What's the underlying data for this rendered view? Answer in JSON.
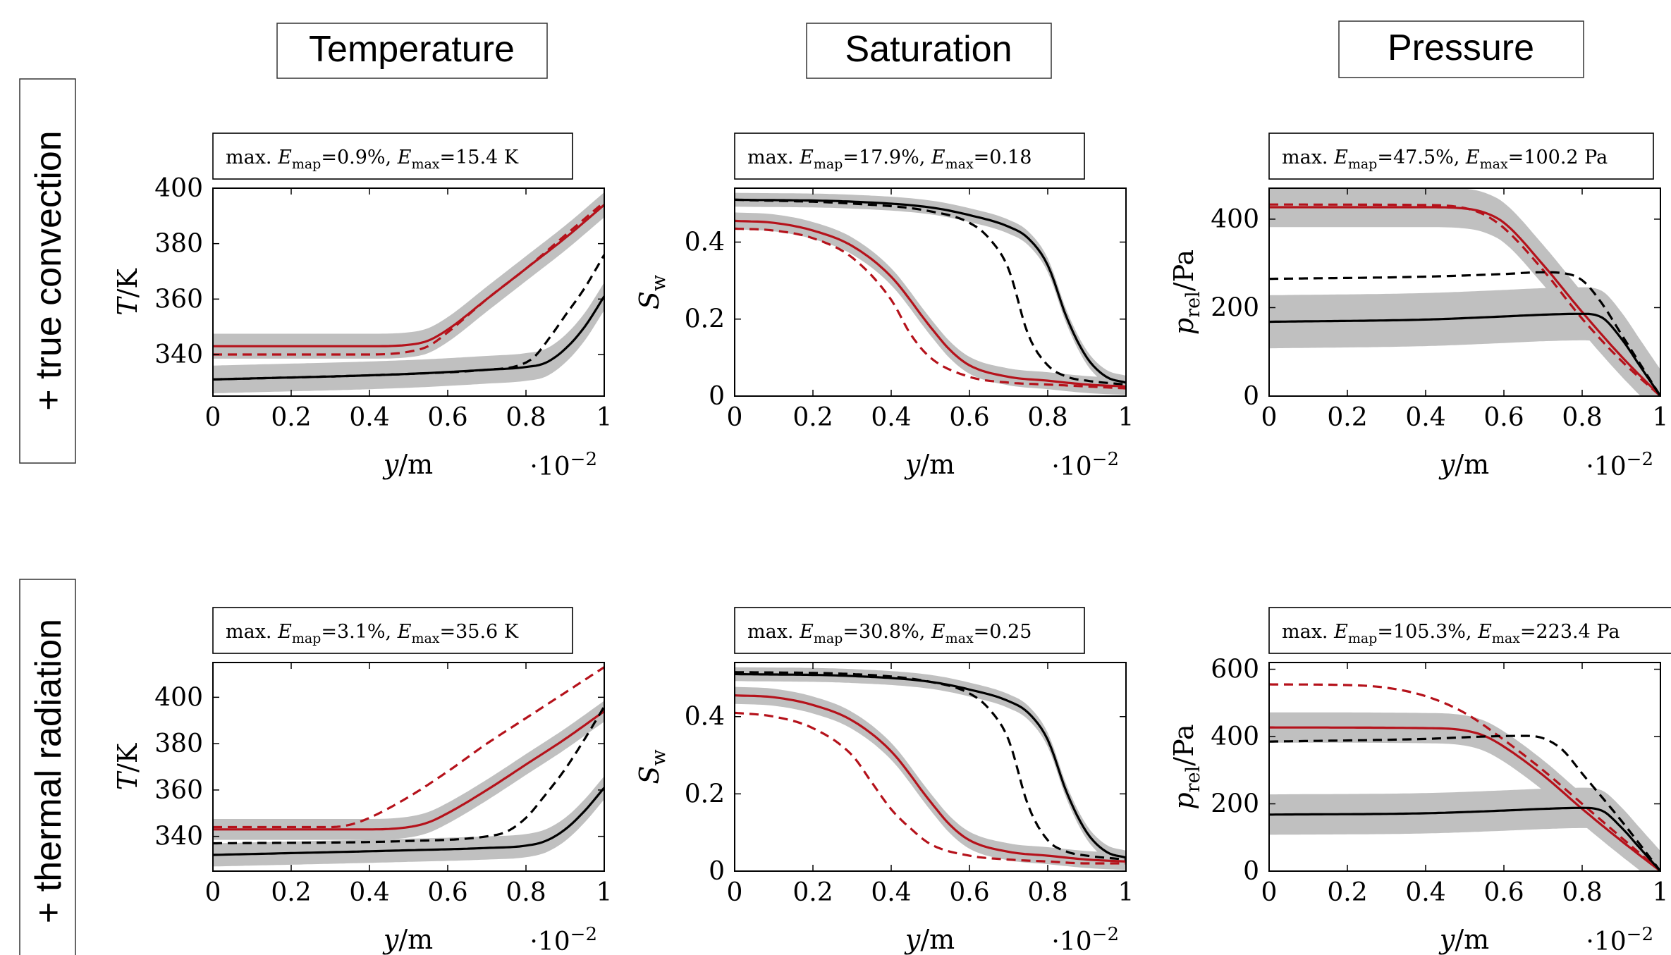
{
  "columns": [
    "Temperature",
    "Saturation",
    "Pressure"
  ],
  "rows": [
    "+ true convection",
    "+ thermal radiation"
  ],
  "colors": {
    "red": "#b5121b",
    "black": "#000000",
    "band": "#c0c0c0"
  },
  "chart_data": [
    {
      "type": "line",
      "row": 0,
      "col": 0,
      "annotation": "max. E_map=0.9%, E_max=15.4 K",
      "xlabel": "y/m",
      "ylabel": "T/K",
      "x_multiplier": "·10^−2",
      "xlim": [
        0,
        1
      ],
      "ylim": [
        325,
        400
      ],
      "xticks": [
        0,
        0.2,
        0.4,
        0.6,
        0.8,
        1
      ],
      "yticks": [
        340,
        360,
        380,
        400
      ],
      "series": [
        {
          "color": "red",
          "style": "solid",
          "band": 4.5,
          "x": [
            0,
            0.4,
            0.5,
            0.55,
            0.6,
            0.7,
            0.8,
            0.9,
            1
          ],
          "y": [
            343,
            343,
            343.5,
            345,
            349,
            360,
            371,
            382,
            394
          ]
        },
        {
          "color": "red",
          "style": "dashed",
          "x": [
            0,
            0.4,
            0.5,
            0.55,
            0.6,
            0.7,
            0.8,
            0.9,
            1
          ],
          "y": [
            340,
            340,
            341,
            343,
            348,
            360,
            371,
            383,
            395
          ]
        },
        {
          "color": "black",
          "style": "solid",
          "band": 5,
          "x": [
            0,
            0.5,
            0.7,
            0.8,
            0.85,
            0.9,
            0.95,
            1
          ],
          "y": [
            331,
            333,
            334.5,
            335.5,
            337,
            342,
            350,
            361
          ]
        },
        {
          "color": "black",
          "style": "dashed",
          "x": [
            0,
            0.5,
            0.7,
            0.78,
            0.82,
            0.86,
            0.9,
            0.95,
            1
          ],
          "y": [
            331,
            333,
            334.5,
            336,
            339,
            346,
            354,
            364,
            376
          ]
        }
      ]
    },
    {
      "type": "line",
      "row": 0,
      "col": 1,
      "annotation": "max. E_map=17.9%, E_max=0.18",
      "xlabel": "y/m",
      "ylabel": "S_w",
      "x_multiplier": "·10^−2",
      "xlim": [
        0,
        1
      ],
      "ylim": [
        0,
        0.54
      ],
      "xticks": [
        0,
        0.2,
        0.4,
        0.6,
        0.8,
        1
      ],
      "yticks": [
        0,
        0.2,
        0.4
      ],
      "series": [
        {
          "color": "black",
          "style": "solid",
          "band": 0.018,
          "x": [
            0,
            0.3,
            0.5,
            0.6,
            0.7,
            0.75,
            0.8,
            0.85,
            0.9,
            0.95,
            1
          ],
          "y": [
            0.51,
            0.505,
            0.49,
            0.47,
            0.44,
            0.41,
            0.34,
            0.2,
            0.1,
            0.05,
            0.035
          ]
        },
        {
          "color": "black",
          "style": "dashed",
          "x": [
            0,
            0.3,
            0.5,
            0.6,
            0.65,
            0.7,
            0.75,
            0.8,
            0.85,
            0.9,
            1
          ],
          "y": [
            0.51,
            0.5,
            0.48,
            0.45,
            0.41,
            0.33,
            0.16,
            0.08,
            0.05,
            0.04,
            0.03
          ]
        },
        {
          "color": "red",
          "style": "solid",
          "band": 0.022,
          "x": [
            0,
            0.1,
            0.2,
            0.3,
            0.4,
            0.5,
            0.55,
            0.6,
            0.7,
            0.8,
            0.9,
            1
          ],
          "y": [
            0.455,
            0.45,
            0.43,
            0.39,
            0.31,
            0.18,
            0.12,
            0.08,
            0.05,
            0.04,
            0.03,
            0.025
          ]
        },
        {
          "color": "red",
          "style": "dashed",
          "x": [
            0,
            0.1,
            0.2,
            0.3,
            0.4,
            0.45,
            0.5,
            0.6,
            0.7,
            0.8,
            0.9,
            1
          ],
          "y": [
            0.435,
            0.43,
            0.41,
            0.36,
            0.25,
            0.16,
            0.1,
            0.05,
            0.035,
            0.03,
            0.025,
            0.02
          ]
        }
      ]
    },
    {
      "type": "line",
      "row": 0,
      "col": 2,
      "annotation": "max. E_map=47.5%, E_max=100.2 Pa",
      "xlabel": "y/m",
      "ylabel": "p_rel/Pa",
      "x_multiplier": "·10^−2",
      "xlim": [
        0,
        1
      ],
      "ylim": [
        0,
        470
      ],
      "xticks": [
        0,
        0.2,
        0.4,
        0.6,
        0.8,
        1
      ],
      "yticks": [
        0,
        200,
        400
      ],
      "series": [
        {
          "color": "red",
          "style": "solid",
          "band": 45,
          "x": [
            0,
            0.4,
            0.5,
            0.55,
            0.6,
            0.7,
            0.8,
            0.9,
            1
          ],
          "y": [
            427,
            427,
            424,
            415,
            392,
            297,
            190,
            90,
            0
          ]
        },
        {
          "color": "red",
          "style": "dashed",
          "x": [
            0,
            0.4,
            0.5,
            0.55,
            0.6,
            0.7,
            0.8,
            0.9,
            1
          ],
          "y": [
            433,
            432,
            425,
            410,
            380,
            285,
            175,
            80,
            0
          ]
        },
        {
          "color": "black",
          "style": "solid",
          "band": 60,
          "x": [
            0,
            0.4,
            0.6,
            0.7,
            0.8,
            0.85,
            0.9,
            0.95,
            1
          ],
          "y": [
            168,
            173,
            180,
            184,
            186,
            178,
            130,
            65,
            0
          ]
        },
        {
          "color": "black",
          "style": "dashed",
          "x": [
            0,
            0.4,
            0.6,
            0.7,
            0.75,
            0.8,
            0.85,
            0.9,
            0.95,
            1
          ],
          "y": [
            265,
            270,
            276,
            280,
            278,
            262,
            210,
            140,
            70,
            0
          ]
        }
      ]
    },
    {
      "type": "line",
      "row": 1,
      "col": 0,
      "annotation": "max. E_map=3.1%, E_max=35.6 K",
      "xlabel": "y/m",
      "ylabel": "T/K",
      "x_multiplier": "·10^−2",
      "xlim": [
        0,
        1
      ],
      "ylim": [
        325,
        415
      ],
      "xticks": [
        0,
        0.2,
        0.4,
        0.6,
        0.8,
        1
      ],
      "yticks": [
        340,
        360,
        380,
        400
      ],
      "series": [
        {
          "color": "red",
          "style": "dashed",
          "x": [
            0,
            0.3,
            0.35,
            0.4,
            0.5,
            0.6,
            0.7,
            0.8,
            0.9,
            1
          ],
          "y": [
            344,
            344,
            345,
            348,
            357,
            368,
            380,
            391,
            402,
            413
          ]
        },
        {
          "color": "red",
          "style": "solid",
          "band": 4.5,
          "x": [
            0,
            0.4,
            0.5,
            0.55,
            0.6,
            0.7,
            0.8,
            0.9,
            1
          ],
          "y": [
            343,
            343,
            344,
            346,
            350,
            360,
            371,
            382,
            394
          ]
        },
        {
          "color": "black",
          "style": "dashed",
          "x": [
            0,
            0.5,
            0.7,
            0.75,
            0.8,
            0.85,
            0.9,
            0.95,
            1
          ],
          "y": [
            337,
            338,
            340,
            342,
            348,
            358,
            369,
            382,
            396
          ]
        },
        {
          "color": "black",
          "style": "solid",
          "band": 5,
          "x": [
            0,
            0.5,
            0.7,
            0.8,
            0.85,
            0.9,
            0.95,
            1
          ],
          "y": [
            332,
            334,
            335,
            336,
            338,
            343,
            351,
            361
          ]
        }
      ]
    },
    {
      "type": "line",
      "row": 1,
      "col": 1,
      "annotation": "max. E_map=30.8%, E_max=0.25",
      "xlabel": "y/m",
      "ylabel": "S_w",
      "x_multiplier": "·10^−2",
      "xlim": [
        0,
        1
      ],
      "ylim": [
        0,
        0.54
      ],
      "xticks": [
        0,
        0.2,
        0.4,
        0.6,
        0.8,
        1
      ],
      "yticks": [
        0,
        0.2,
        0.4
      ],
      "series": [
        {
          "color": "black",
          "style": "solid",
          "band": 0.018,
          "x": [
            0,
            0.3,
            0.5,
            0.6,
            0.7,
            0.75,
            0.8,
            0.85,
            0.9,
            0.95,
            1
          ],
          "y": [
            0.51,
            0.505,
            0.49,
            0.47,
            0.44,
            0.41,
            0.34,
            0.2,
            0.1,
            0.05,
            0.035
          ]
        },
        {
          "color": "black",
          "style": "dashed",
          "x": [
            0,
            0.3,
            0.5,
            0.6,
            0.65,
            0.7,
            0.75,
            0.8,
            0.85,
            0.9,
            1
          ],
          "y": [
            0.515,
            0.51,
            0.49,
            0.46,
            0.42,
            0.34,
            0.17,
            0.08,
            0.05,
            0.04,
            0.03
          ]
        },
        {
          "color": "red",
          "style": "solid",
          "band": 0.022,
          "x": [
            0,
            0.1,
            0.2,
            0.3,
            0.4,
            0.5,
            0.55,
            0.6,
            0.7,
            0.8,
            0.9,
            1
          ],
          "y": [
            0.455,
            0.45,
            0.43,
            0.39,
            0.31,
            0.18,
            0.12,
            0.08,
            0.05,
            0.04,
            0.03,
            0.025
          ]
        },
        {
          "color": "red",
          "style": "dashed",
          "x": [
            0,
            0.1,
            0.2,
            0.3,
            0.35,
            0.4,
            0.45,
            0.5,
            0.6,
            0.7,
            0.8,
            0.9,
            1
          ],
          "y": [
            0.41,
            0.4,
            0.37,
            0.3,
            0.23,
            0.16,
            0.11,
            0.07,
            0.04,
            0.03,
            0.025,
            0.02,
            0.02
          ]
        }
      ]
    },
    {
      "type": "line",
      "row": 1,
      "col": 2,
      "annotation": "max. E_map=105.3%, E_max=223.4 Pa",
      "xlabel": "y/m",
      "ylabel": "p_rel/Pa",
      "x_multiplier": "·10^−2",
      "xlim": [
        0,
        1
      ],
      "ylim": [
        0,
        620
      ],
      "xticks": [
        0,
        0.2,
        0.4,
        0.6,
        0.8,
        1
      ],
      "yticks": [
        0,
        200,
        400,
        600
      ],
      "series": [
        {
          "color": "red",
          "style": "dashed",
          "x": [
            0,
            0.2,
            0.3,
            0.4,
            0.5,
            0.6,
            0.7,
            0.8,
            0.9,
            1
          ],
          "y": [
            555,
            553,
            545,
            520,
            470,
            390,
            300,
            200,
            100,
            0
          ]
        },
        {
          "color": "red",
          "style": "solid",
          "band": 45,
          "x": [
            0,
            0.4,
            0.5,
            0.55,
            0.6,
            0.7,
            0.8,
            0.9,
            1
          ],
          "y": [
            427,
            425,
            418,
            402,
            370,
            285,
            185,
            90,
            0
          ]
        },
        {
          "color": "black",
          "style": "dashed",
          "x": [
            0,
            0.4,
            0.55,
            0.65,
            0.7,
            0.75,
            0.8,
            0.9,
            1
          ],
          "y": [
            385,
            393,
            400,
            402,
            395,
            360,
            290,
            150,
            0
          ]
        },
        {
          "color": "black",
          "style": "solid",
          "band": 60,
          "x": [
            0,
            0.4,
            0.6,
            0.7,
            0.8,
            0.85,
            0.9,
            0.95,
            1
          ],
          "y": [
            168,
            172,
            180,
            185,
            188,
            180,
            130,
            65,
            0
          ]
        }
      ]
    }
  ]
}
